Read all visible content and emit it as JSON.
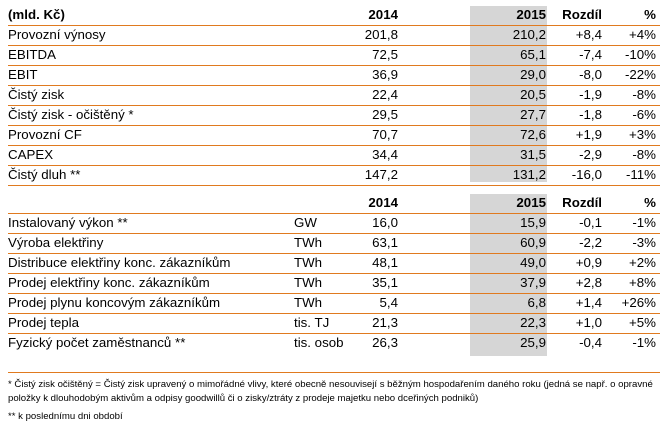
{
  "table1": {
    "header": {
      "label": "(mld. Kč)",
      "y2014": "2014",
      "y2015": "2015",
      "diff": "Rozdíl",
      "pct": "%"
    },
    "rows": [
      {
        "label": "Provozní výnosy",
        "y2014": "201,8",
        "y2015": "210,2",
        "diff": "+8,4",
        "pct": "+4%"
      },
      {
        "label": "EBITDA",
        "y2014": "72,5",
        "y2015": "65,1",
        "diff": "-7,4",
        "pct": "-10%"
      },
      {
        "label": "EBIT",
        "y2014": "36,9",
        "y2015": "29,0",
        "diff": "-8,0",
        "pct": "-22%"
      },
      {
        "label": "Čistý zisk",
        "y2014": "22,4",
        "y2015": "20,5",
        "diff": "-1,9",
        "pct": "-8%"
      },
      {
        "label": "Čistý zisk - očištěný *",
        "y2014": "29,5",
        "y2015": "27,7",
        "diff": "-1,8",
        "pct": "-6%"
      },
      {
        "label": "Provozní CF",
        "y2014": "70,7",
        "y2015": "72,6",
        "diff": "+1,9",
        "pct": "+3%"
      },
      {
        "label": "CAPEX",
        "y2014": "34,4",
        "y2015": "31,5",
        "diff": "-2,9",
        "pct": "-8%"
      },
      {
        "label": "Čistý dluh **",
        "y2014": "147,2",
        "y2015": "131,2",
        "diff": "-16,0",
        "pct": "-11%"
      }
    ]
  },
  "table2": {
    "header": {
      "y2014": "2014",
      "y2015": "2015",
      "diff": "Rozdíl",
      "pct": "%"
    },
    "rows": [
      {
        "label": "Instalovaný výkon **",
        "unit": "GW",
        "y2014": "16,0",
        "y2015": "15,9",
        "diff": "-0,1",
        "pct": "-1%"
      },
      {
        "label": "Výroba elektřiny",
        "unit": "TWh",
        "y2014": "63,1",
        "y2015": "60,9",
        "diff": "-2,2",
        "pct": "-3%"
      },
      {
        "label": "Distribuce elektřiny konc. zákazníkům",
        "unit": "TWh",
        "y2014": "48,1",
        "y2015": "49,0",
        "diff": "+0,9",
        "pct": "+2%"
      },
      {
        "label": "Prodej elektřiny konc. zákazníkům",
        "unit": "TWh",
        "y2014": "35,1",
        "y2015": "37,9",
        "diff": "+2,8",
        "pct": "+8%"
      },
      {
        "label": "Prodej plynu koncovým zákazníkům",
        "unit": "TWh",
        "y2014": "5,4",
        "y2015": "6,8",
        "diff": "+1,4",
        "pct": "+26%"
      },
      {
        "label": "Prodej tepla",
        "unit": "tis. TJ",
        "y2014": "21,3",
        "y2015": "22,3",
        "diff": "+1,0",
        "pct": "+5%"
      },
      {
        "label": "Fyzický počet zaměstnanců **",
        "unit": "tis. osob",
        "y2014": "26,3",
        "y2015": "25,9",
        "diff": "-0,4",
        "pct": "-1%"
      }
    ]
  },
  "footnotes": {
    "note1": "* Čistý zisk očištěný = Čistý zisk upravený o mimořádné vlivy, které obecně nesouvisejí s běžným hospodařením daného roku (jedná se např. o opravné položky k dlouhodobým aktivům a odpisy goodwillů či o zisky/ztráty z prodeje majetku nebo dceřiných podniků)",
    "note2": "** k poslednímu dni období"
  },
  "colors": {
    "highlight_column": "#d6d6d6",
    "rule_line": "#e07a1f"
  }
}
